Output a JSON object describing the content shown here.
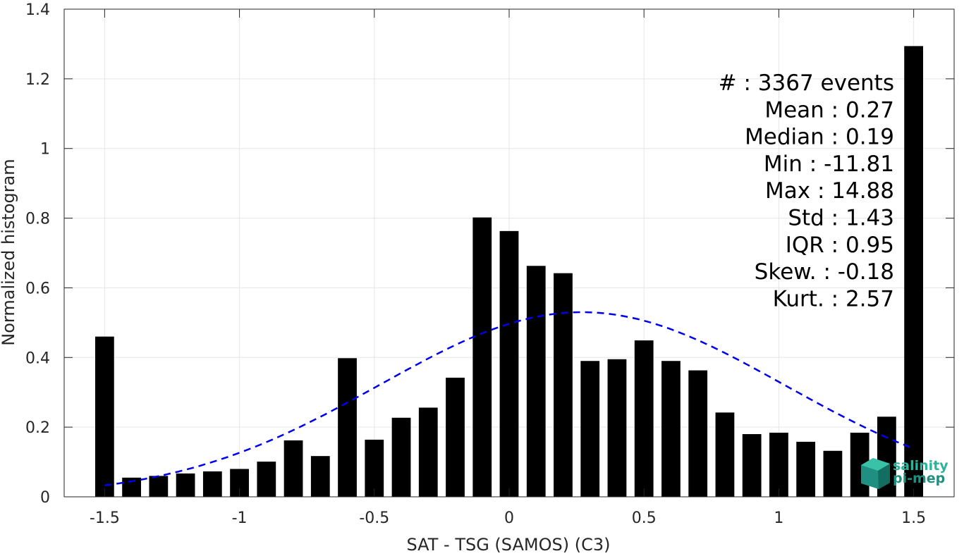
{
  "chart_data": {
    "type": "bar",
    "title": "",
    "xlabel": "SAT - TSG (SAMOS) (C3)",
    "ylabel": "Normalized histogram",
    "xlim": [
      -1.65,
      1.65
    ],
    "ylim": [
      0,
      1.4
    ],
    "grid": true,
    "x_ticks": [
      -1.5,
      -1,
      -0.5,
      0,
      0.5,
      1,
      1.5
    ],
    "x_tick_labels": [
      "-1.5",
      "-1",
      "-0.5",
      "0",
      "0.5",
      "1",
      "1.5"
    ],
    "y_ticks": [
      0,
      0.2,
      0.4,
      0.6,
      0.8,
      1,
      1.2,
      1.4
    ],
    "y_tick_labels": [
      "0",
      "0.2",
      "0.4",
      "0.6",
      "0.8",
      "1",
      "1.2",
      "1.4"
    ],
    "bar_color": "#000000",
    "bar_width": 0.07,
    "x": [
      -1.5,
      -1.4,
      -1.3,
      -1.2,
      -1.1,
      -1.0,
      -0.9,
      -0.8,
      -0.7,
      -0.6,
      -0.5,
      -0.4,
      -0.3,
      -0.2,
      -0.1,
      0.0,
      0.1,
      0.2,
      0.3,
      0.4,
      0.5,
      0.6,
      0.7,
      0.8,
      0.9,
      1.0,
      1.1,
      1.2,
      1.3,
      1.4,
      1.5
    ],
    "values": [
      0.46,
      0.055,
      0.06,
      0.067,
      0.073,
      0.08,
      0.101,
      0.162,
      0.117,
      0.398,
      0.164,
      0.227,
      0.256,
      0.342,
      0.802,
      0.763,
      0.663,
      0.642,
      0.39,
      0.395,
      0.449,
      0.39,
      0.363,
      0.242,
      0.18,
      0.184,
      0.158,
      0.132,
      0.184,
      0.23,
      1.294
    ],
    "fit_curve": {
      "style": "dashed",
      "color": "#0000ee",
      "mean": 0.27,
      "std": 0.75,
      "peak": 0.53,
      "x_range": [
        -1.5,
        1.5
      ]
    },
    "stats": [
      "#  : 3367 events",
      "Mean : 0.27",
      "Median : 0.19",
      "Min : -11.81",
      "Max : 14.88",
      "Std : 1.43",
      "IQR : 0.95",
      "Skew. : -0.18",
      "Kurt. : 2.57"
    ],
    "logo": {
      "line1": "salinity",
      "line2": "pi-mep",
      "color": "#2bb39b"
    }
  }
}
